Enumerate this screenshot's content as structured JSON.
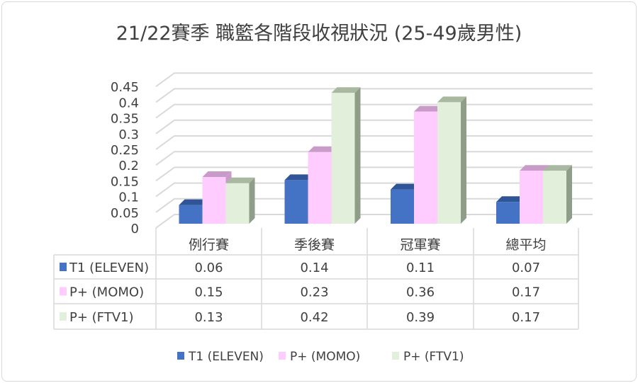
{
  "chart_data": {
    "type": "bar",
    "title": "21/22賽季 職籃各階段收視狀況 (25-49歲男性)",
    "categories": [
      "例行賽",
      "季後賽",
      "冠軍賽",
      "總平均"
    ],
    "series": [
      {
        "name": "T1 (ELEVEN)",
        "values": [
          0.06,
          0.14,
          0.11,
          0.07
        ],
        "color": "#4472C4",
        "top": "#2F5597",
        "side": "#2F5597"
      },
      {
        "name": "P+ (MOMO)",
        "values": [
          0.15,
          0.23,
          0.36,
          0.17
        ],
        "color": "#FFCCFF",
        "top": "#C99BC9",
        "side": "#C99BC9"
      },
      {
        "name": "P+ (FTV1)",
        "values": [
          0.13,
          0.42,
          0.39,
          0.17
        ],
        "color": "#E2EFDA",
        "top": "#A9B8A0",
        "side": "#8F9E88"
      }
    ],
    "yticks": [
      "0",
      "0.05",
      "0.1",
      "0.15",
      "0.2",
      "0.25",
      "0.3",
      "0.35",
      "0.4",
      "0.45"
    ],
    "ylim": [
      0,
      0.45
    ],
    "grid": true,
    "legend": "bottom",
    "data_table": true
  }
}
